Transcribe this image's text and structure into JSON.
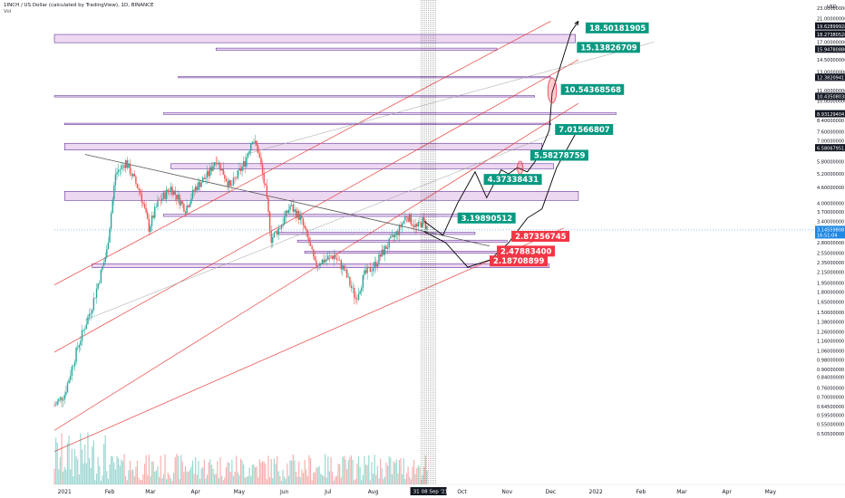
{
  "header": {
    "symbol_line": "1INCH / US Dollar (calculated by TradingView), 1D, BINANCE",
    "volume_label": "Vol"
  },
  "colors": {
    "up": "#26a69a",
    "down": "#ef5350",
    "zone_fill": "#e1bee7",
    "zone_border": "#4a148c",
    "channel": "#e53935",
    "trend": "#555555",
    "target_box": "#089981",
    "stop_box": "#f23645",
    "current_price": "#1e88e5"
  },
  "chart_data": {
    "type": "candlestick",
    "x_axis": {
      "type": "date",
      "start": "2020-12-25",
      "end": "2022-05-31",
      "tick_labels": [
        {
          "date": "2021-01-01",
          "label": "2021"
        },
        {
          "date": "2021-02-01",
          "label": "Feb"
        },
        {
          "date": "2021-03-01",
          "label": "Mar"
        },
        {
          "date": "2021-04-01",
          "label": "Apr"
        },
        {
          "date": "2021-05-01",
          "label": "May"
        },
        {
          "date": "2021-06-01",
          "label": "Jun"
        },
        {
          "date": "2021-07-01",
          "label": "Jul"
        },
        {
          "date": "2021-08-01",
          "label": "Aug"
        },
        {
          "date": "2021-10-01",
          "label": "Oct"
        },
        {
          "date": "2021-11-01",
          "label": "Nov"
        },
        {
          "date": "2021-12-01",
          "label": "Dec"
        },
        {
          "date": "2022-01-01",
          "label": "2022"
        },
        {
          "date": "2022-02-01",
          "label": "Feb"
        },
        {
          "date": "2022-03-01",
          "label": "Mar"
        },
        {
          "date": "2022-04-01",
          "label": "Apr"
        },
        {
          "date": "2022-05-01",
          "label": "May"
        }
      ],
      "crosshair_label": "08 Sep '21",
      "crosshair_date": "2021-09-08",
      "crosshair_prefix": "31"
    },
    "y_axis": {
      "scale": "log",
      "range": [
        0.32,
        24
      ],
      "currency": "USD",
      "tick_labels": [
        "23.00000000",
        "21.00000000",
        "19.62899928",
        "18.27380528",
        "17.00000000",
        "15.94780880",
        "14.50000000",
        "13.00000000",
        "12.38209411",
        "11.00000000",
        "10.43508038",
        "10.00000000",
        "8.93129404",
        "8.40000000",
        "7.60000000",
        "7.00000000",
        "6.58067951",
        "5.80000000",
        "5.20000000",
        "4.60000000",
        "4.00000000",
        "3.70000000",
        "3.40000000",
        "3.14559808",
        "2.80000000",
        "2.55000000",
        "2.35000000",
        "2.15000000",
        "1.95000000",
        "1.80000000",
        "1.65000000",
        "1.50000000",
        "1.38000000",
        "1.26000000",
        "1.16000000",
        "1.06000000",
        "0.98000000",
        "0.90000000",
        "0.84000000",
        "0.76000000",
        "0.70000000",
        "0.64500000",
        "0.59500000",
        "0.55000000",
        "0.50500000"
      ],
      "boxed_labels": [
        "19.62899928",
        "18.27380528",
        "15.94780880",
        "12.38209411",
        "10.43508038",
        "8.93129404",
        "6.58067951"
      ],
      "current_price": "3.14559808",
      "current_countdown": "16:51:04"
    },
    "ohlc_keypoints": [
      {
        "date": "2020-12-25",
        "price": 0.65
      },
      {
        "date": "2021-01-01",
        "price": 0.72
      },
      {
        "date": "2021-01-10",
        "price": 1.1
      },
      {
        "date": "2021-01-20",
        "price": 1.6
      },
      {
        "date": "2021-01-30",
        "price": 2.6
      },
      {
        "date": "2021-02-05",
        "price": 5.2
      },
      {
        "date": "2021-02-12",
        "price": 5.8
      },
      {
        "date": "2021-02-22",
        "price": 4.4
      },
      {
        "date": "2021-02-28",
        "price": 3.2
      },
      {
        "date": "2021-03-06",
        "price": 4.0
      },
      {
        "date": "2021-03-15",
        "price": 4.6
      },
      {
        "date": "2021-03-25",
        "price": 3.8
      },
      {
        "date": "2021-04-01",
        "price": 4.6
      },
      {
        "date": "2021-04-10",
        "price": 5.2
      },
      {
        "date": "2021-04-15",
        "price": 6.0
      },
      {
        "date": "2021-04-25",
        "price": 4.6
      },
      {
        "date": "2021-05-05",
        "price": 5.8
      },
      {
        "date": "2021-05-10",
        "price": 7.2
      },
      {
        "date": "2021-05-14",
        "price": 6.4
      },
      {
        "date": "2021-05-19",
        "price": 4.5
      },
      {
        "date": "2021-05-23",
        "price": 2.9
      },
      {
        "date": "2021-05-30",
        "price": 3.3
      },
      {
        "date": "2021-06-05",
        "price": 3.9
      },
      {
        "date": "2021-06-12",
        "price": 3.5
      },
      {
        "date": "2021-06-18",
        "price": 2.8
      },
      {
        "date": "2021-06-22",
        "price": 2.3
      },
      {
        "date": "2021-06-28",
        "price": 2.4
      },
      {
        "date": "2021-07-05",
        "price": 2.5
      },
      {
        "date": "2021-07-12",
        "price": 2.2
      },
      {
        "date": "2021-07-20",
        "price": 1.7
      },
      {
        "date": "2021-07-26",
        "price": 2.1
      },
      {
        "date": "2021-08-02",
        "price": 2.3
      },
      {
        "date": "2021-08-10",
        "price": 2.7
      },
      {
        "date": "2021-08-18",
        "price": 3.1
      },
      {
        "date": "2021-08-24",
        "price": 3.6
      },
      {
        "date": "2021-08-31",
        "price": 3.2
      },
      {
        "date": "2021-09-04",
        "price": 3.4
      },
      {
        "date": "2021-09-08",
        "price": 3.15
      }
    ],
    "zones": [
      {
        "from": "2020-12-25",
        "to": "2021-12-18",
        "low": 16.9,
        "high": 18.2
      },
      {
        "from": "2021-04-15",
        "to": "2021-10-25",
        "low": 15.8,
        "high": 16.1
      },
      {
        "from": "2021-03-20",
        "to": "2021-12-01",
        "low": 12.35,
        "high": 12.45
      },
      {
        "from": "2020-12-25",
        "to": "2021-11-20",
        "low": 10.38,
        "high": 10.5
      },
      {
        "from": "2021-03-10",
        "to": "2022-01-15",
        "low": 8.88,
        "high": 9.0
      },
      {
        "from": "2021-01-01",
        "to": "2021-12-01",
        "low": 8.1,
        "high": 8.2
      },
      {
        "from": "2021-01-01",
        "to": "2021-11-25",
        "low": 6.45,
        "high": 6.85
      },
      {
        "from": "2021-03-15",
        "to": "2021-12-03",
        "low": 5.45,
        "high": 5.7
      },
      {
        "from": "2021-01-01",
        "to": "2021-12-20",
        "low": 4.1,
        "high": 4.45
      },
      {
        "from": "2021-03-10",
        "to": "2021-10-12",
        "low": 3.55,
        "high": 3.62
      },
      {
        "from": "2021-05-28",
        "to": "2021-10-10",
        "low": 3.02,
        "high": 3.08
      },
      {
        "from": "2021-06-10",
        "to": "2021-11-01",
        "low": 2.82,
        "high": 2.87
      },
      {
        "from": "2021-06-15",
        "to": "2021-10-28",
        "low": 2.55,
        "high": 2.6
      },
      {
        "from": "2021-01-20",
        "to": "2021-11-30",
        "low": 2.24,
        "high": 2.32
      }
    ],
    "channel_lines": [
      {
        "from": {
          "date": "2020-12-25",
          "price": 1.92
        },
        "to": {
          "date": "2021-12-01",
          "price": 20.5
        }
      },
      {
        "from": {
          "date": "2020-12-25",
          "price": 0.52
        },
        "to": {
          "date": "2021-12-20",
          "price": 9.8
        }
      },
      {
        "from": {
          "date": "2020-12-25",
          "price": 1.05
        },
        "to": {
          "date": "2021-12-20",
          "price": 14.5
        }
      },
      {
        "from": {
          "date": "2020-12-25",
          "price": 0.43
        },
        "to": {
          "date": "2021-12-10",
          "price": 3.2
        }
      }
    ],
    "guide_lines": [
      {
        "from": {
          "date": "2021-05-05",
          "price": 6.2
        },
        "to": {
          "date": "2022-02-10",
          "price": 17.0
        }
      },
      {
        "from": {
          "date": "2021-01-15",
          "price": 1.4
        },
        "to": {
          "date": "2021-12-01",
          "price": 7.4
        }
      }
    ],
    "trend_lines": [
      {
        "from": {
          "date": "2021-01-15",
          "price": 6.2
        },
        "to": {
          "date": "2021-10-20",
          "price": 2.72
        }
      }
    ],
    "projections": [
      {
        "points": [
          [
            "2021-09-05",
            3.4
          ],
          [
            "2021-09-18",
            3.0
          ],
          [
            "2021-09-28",
            4.0
          ],
          [
            "2021-10-10",
            5.3
          ],
          [
            "2021-10-18",
            4.2
          ],
          [
            "2021-10-28",
            5.4
          ],
          [
            "2021-11-02",
            5.2
          ],
          [
            "2021-11-08",
            5.5
          ],
          [
            "2021-11-15",
            5.3
          ],
          [
            "2021-11-22",
            6.0
          ],
          [
            "2021-11-30",
            7.7
          ],
          [
            "2021-12-02",
            10.8
          ],
          [
            "2021-12-15",
            18.6
          ],
          [
            "2021-12-20",
            20.5
          ]
        ]
      },
      {
        "points": [
          [
            "2021-09-05",
            3.1
          ],
          [
            "2021-09-20",
            2.8
          ],
          [
            "2021-10-05",
            2.25
          ],
          [
            "2021-10-20",
            2.4
          ],
          [
            "2021-11-02",
            2.8
          ],
          [
            "2021-11-15",
            3.5
          ],
          [
            "2021-11-25",
            3.8
          ],
          [
            "2021-12-05",
            5.5
          ],
          [
            "2021-12-20",
            7.8
          ]
        ]
      }
    ],
    "targets": [
      {
        "label": "18.50181905",
        "date": "2021-12-25",
        "price": 19.3,
        "kind": "target"
      },
      {
        "label": "15.13826709",
        "date": "2021-12-19",
        "price": 16.2,
        "kind": "target"
      },
      {
        "label": "10.54368568",
        "date": "2021-12-08",
        "price": 11.1,
        "kind": "target"
      },
      {
        "label": "7.01566807",
        "date": "2021-12-04",
        "price": 7.75,
        "kind": "target"
      },
      {
        "label": "5.58278759",
        "date": "2021-11-17",
        "price": 6.15,
        "kind": "target"
      },
      {
        "label": "4.37338431",
        "date": "2021-10-16",
        "price": 4.95,
        "kind": "target"
      },
      {
        "label": "3.19890512",
        "date": "2021-09-28",
        "price": 3.5,
        "kind": "target"
      },
      {
        "label": "2.87356745",
        "date": "2021-11-04",
        "price": 2.97,
        "kind": "stop"
      },
      {
        "label": "2.47883400",
        "date": "2021-10-25",
        "price": 2.6,
        "kind": "stop"
      },
      {
        "label": "2.18708899",
        "date": "2021-10-20",
        "price": 2.38,
        "kind": "stop"
      }
    ],
    "highlights": [
      {
        "date": "2021-12-02",
        "price": 11.0,
        "rx_days": 3,
        "ry_price_ratio": 1.12
      },
      {
        "date": "2021-11-10",
        "price": 5.5,
        "rx_days": 2,
        "ry_price_ratio": 1.06
      }
    ]
  }
}
